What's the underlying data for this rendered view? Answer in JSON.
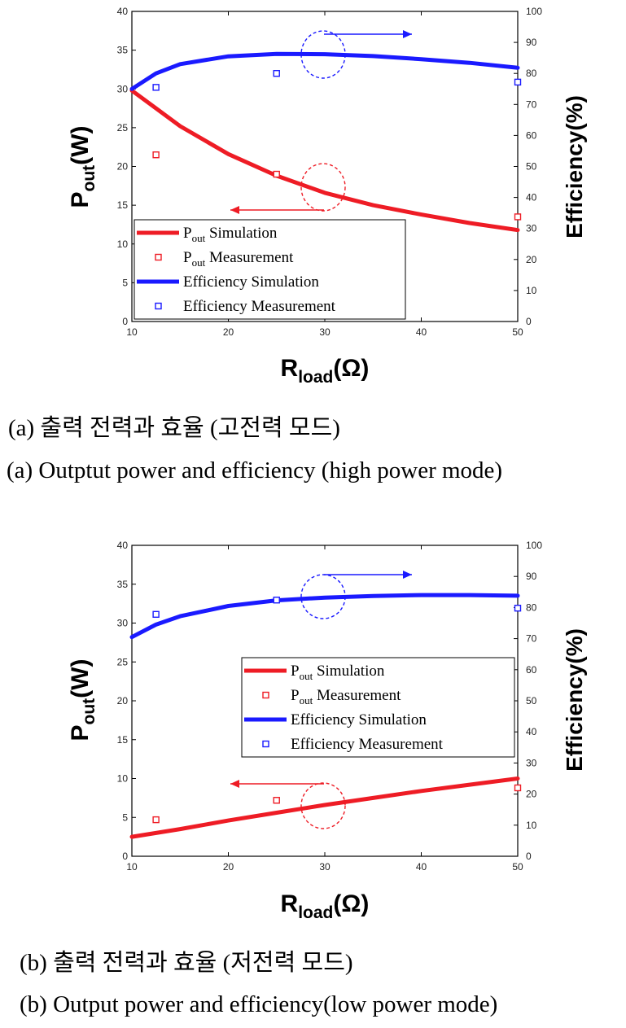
{
  "chart_data": [
    {
      "type": "line",
      "xlabel": "R",
      "xlabel_sub": "load",
      "xlabel_unit": "(Ω)",
      "ylabel": "P",
      "ylabel_sub": "out",
      "ylabel_unit": "(W)",
      "y2label": "Efficiency(%)",
      "xlim": [
        10,
        50
      ],
      "ylim": [
        0,
        40
      ],
      "y2lim": [
        0,
        100
      ],
      "x_ticks": [
        "10",
        "20",
        "30",
        "40",
        "50"
      ],
      "y_ticks": [
        "0",
        "5",
        "10",
        "15",
        "20",
        "25",
        "30",
        "35",
        "40"
      ],
      "y2_ticks": [
        "0",
        "10",
        "20",
        "30",
        "40",
        "50",
        "60",
        "70",
        "80",
        "90",
        "100"
      ],
      "legend_position": "bottom-left",
      "legend": [
        {
          "main": "P",
          "sub": "out",
          "rest": " Simulation"
        },
        {
          "main": "P",
          "sub": "out",
          "rest": " Measurement"
        },
        {
          "main": "Efficiency Simulation",
          "sub": "",
          "rest": ""
        },
        {
          "main": "Efficiency Measurement",
          "sub": "",
          "rest": ""
        }
      ],
      "series": [
        {
          "axis": "left",
          "kind": "line",
          "color": "#ee1c25",
          "x": [
            10,
            15,
            20,
            25,
            30,
            35,
            40,
            45,
            50
          ],
          "y": [
            29.8,
            25.2,
            21.6,
            18.8,
            16.6,
            15.0,
            13.8,
            12.7,
            11.8
          ]
        },
        {
          "axis": "left",
          "kind": "marker",
          "color": "#ee1c25",
          "x": [
            12.5,
            25,
            50
          ],
          "y": [
            21.5,
            19,
            13.5
          ]
        },
        {
          "axis": "right",
          "kind": "line",
          "color": "#1a1aff",
          "x": [
            10,
            12.5,
            15,
            20,
            25,
            30,
            35,
            40,
            45,
            50
          ],
          "y": [
            75,
            80,
            83,
            85.5,
            86.3,
            86.2,
            85.6,
            84.6,
            83.4,
            81.8
          ]
        },
        {
          "axis": "right",
          "kind": "marker",
          "color": "#1a1aff",
          "x": [
            12.5,
            25,
            50
          ],
          "y": [
            75.5,
            80,
            77.2
          ]
        }
      ]
    },
    {
      "type": "line",
      "xlabel": "R",
      "xlabel_sub": "load",
      "xlabel_unit": "(Ω)",
      "ylabel": "P",
      "ylabel_sub": "out",
      "ylabel_unit": "(W)",
      "y2label": "Efficiency(%)",
      "xlim": [
        10,
        50
      ],
      "ylim": [
        0,
        40
      ],
      "y2lim": [
        0,
        100
      ],
      "x_ticks": [
        "10",
        "20",
        "30",
        "40",
        "50"
      ],
      "y_ticks": [
        "0",
        "5",
        "10",
        "15",
        "20",
        "25",
        "30",
        "35",
        "40"
      ],
      "y2_ticks": [
        "0",
        "10",
        "20",
        "30",
        "40",
        "50",
        "60",
        "70",
        "80",
        "90",
        "100"
      ],
      "legend_position": "center-right",
      "legend": [
        {
          "main": "P",
          "sub": "out",
          "rest": " Simulation"
        },
        {
          "main": "P",
          "sub": "out",
          "rest": " Measurement"
        },
        {
          "main": "Efficiency Simulation",
          "sub": "",
          "rest": ""
        },
        {
          "main": "Efficiency Measurement",
          "sub": "",
          "rest": ""
        }
      ],
      "series": [
        {
          "axis": "left",
          "kind": "line",
          "color": "#ee1c25",
          "x": [
            10,
            15,
            20,
            25,
            30,
            35,
            40,
            45,
            50
          ],
          "y": [
            2.5,
            3.5,
            4.6,
            5.6,
            6.6,
            7.5,
            8.4,
            9.2,
            10.0
          ]
        },
        {
          "axis": "left",
          "kind": "marker",
          "color": "#ee1c25",
          "x": [
            12.5,
            25,
            50
          ],
          "y": [
            4.7,
            7.2,
            8.8
          ]
        },
        {
          "axis": "right",
          "kind": "line",
          "color": "#1a1aff",
          "x": [
            10,
            12.5,
            15,
            20,
            25,
            30,
            35,
            40,
            45,
            50
          ],
          "y": [
            70.5,
            74.5,
            77.2,
            80.5,
            82.3,
            83.2,
            83.7,
            84.0,
            84.0,
            83.8
          ]
        },
        {
          "axis": "right",
          "kind": "marker",
          "color": "#1a1aff",
          "x": [
            12.5,
            25,
            50
          ],
          "y": [
            77.8,
            82.4,
            79.8
          ]
        }
      ]
    }
  ],
  "captions": [
    {
      "ko": "(a) 출력 전력과 효율 (고전력 모드)",
      "en": "(a) Outptut power and efficiency (high power mode)"
    },
    {
      "ko": "(b) 출력 전력과 효율 (저전력 모드)",
      "en": "(b) Output power and efficiency(low power mode)"
    }
  ]
}
